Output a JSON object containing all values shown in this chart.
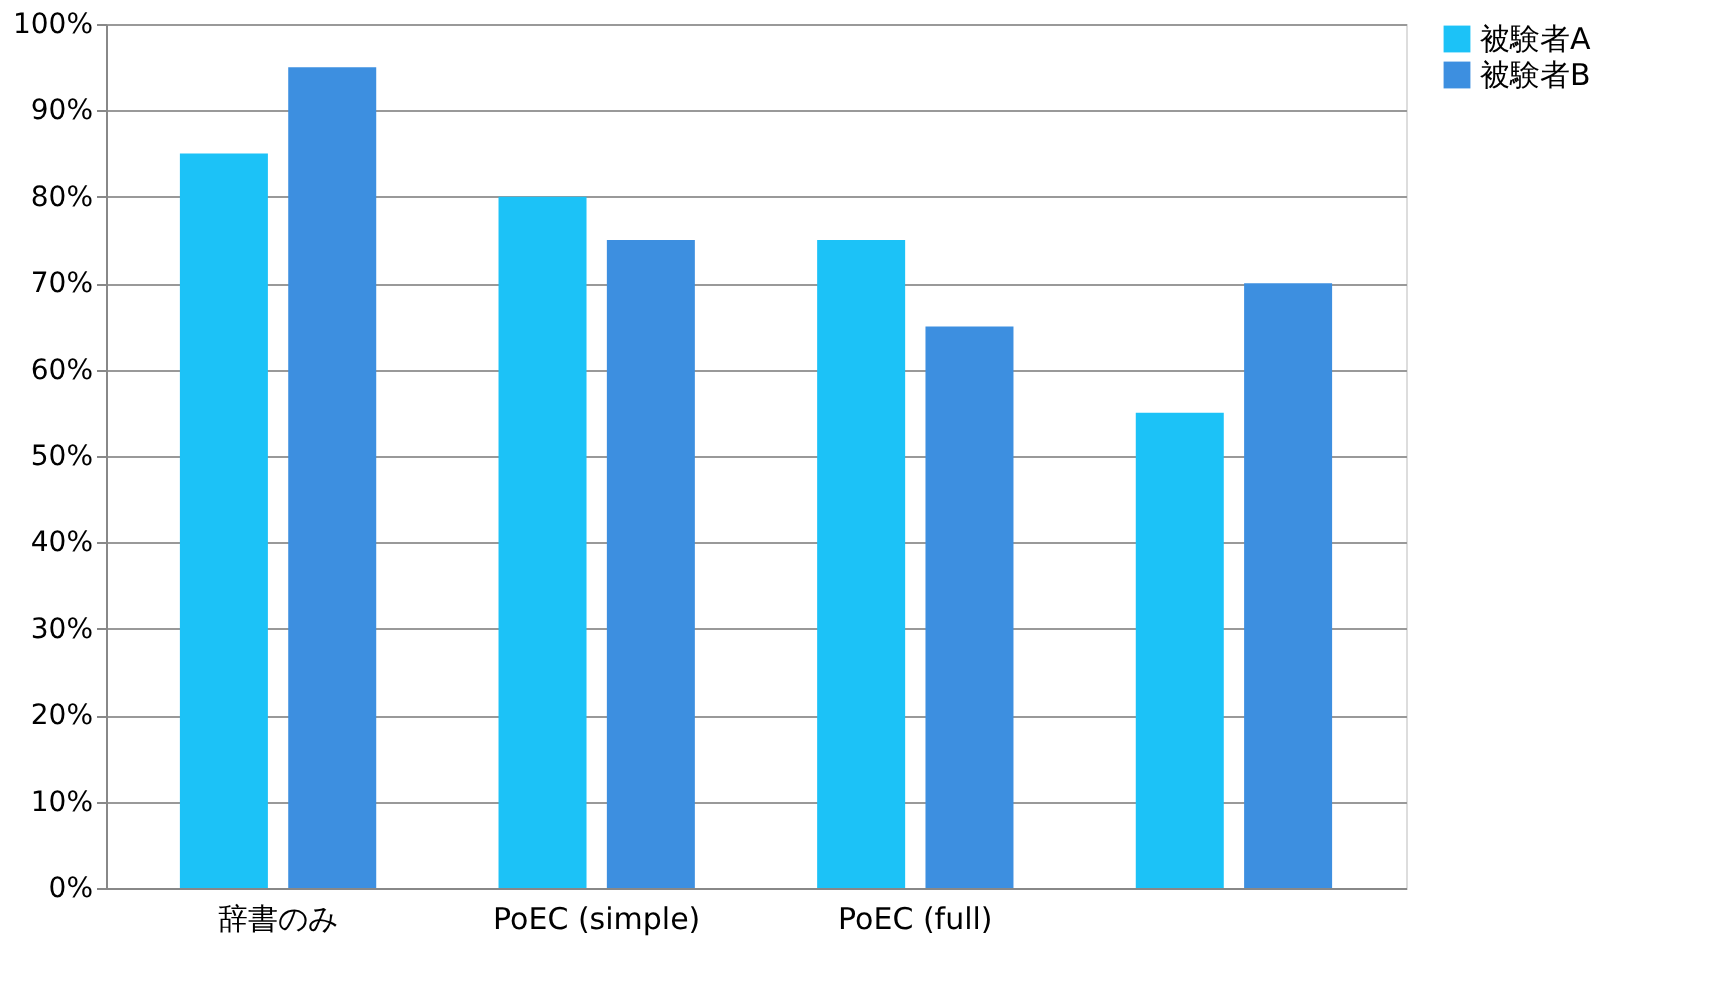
{
  "chart_data": {
    "type": "bar",
    "categories": [
      "辞書のみ",
      "PoEC (simple)",
      "PoEC (full)",
      null
    ],
    "series": [
      {
        "name": "被験者A",
        "color": "#1cc2f7",
        "values": [
          85,
          80,
          75,
          55
        ]
      },
      {
        "name": "被験者B",
        "color": "#3d8fe0",
        "values": [
          95,
          75,
          65,
          70
        ]
      }
    ],
    "ylim": [
      0,
      100
    ],
    "yticks": [
      {
        "value": 0,
        "label": "0%"
      },
      {
        "value": 10,
        "label": "10%"
      },
      {
        "value": 20,
        "label": "20%"
      },
      {
        "value": 30,
        "label": "30%"
      },
      {
        "value": 40,
        "label": "40%"
      },
      {
        "value": 50,
        "label": "50%"
      },
      {
        "value": 60,
        "label": "60%"
      },
      {
        "value": 70,
        "label": "70%"
      },
      {
        "value": 80,
        "label": "80%"
      },
      {
        "value": 90,
        "label": "90%"
      },
      {
        "value": 100,
        "label": "100%"
      }
    ],
    "grid": "y",
    "legend": "right"
  }
}
